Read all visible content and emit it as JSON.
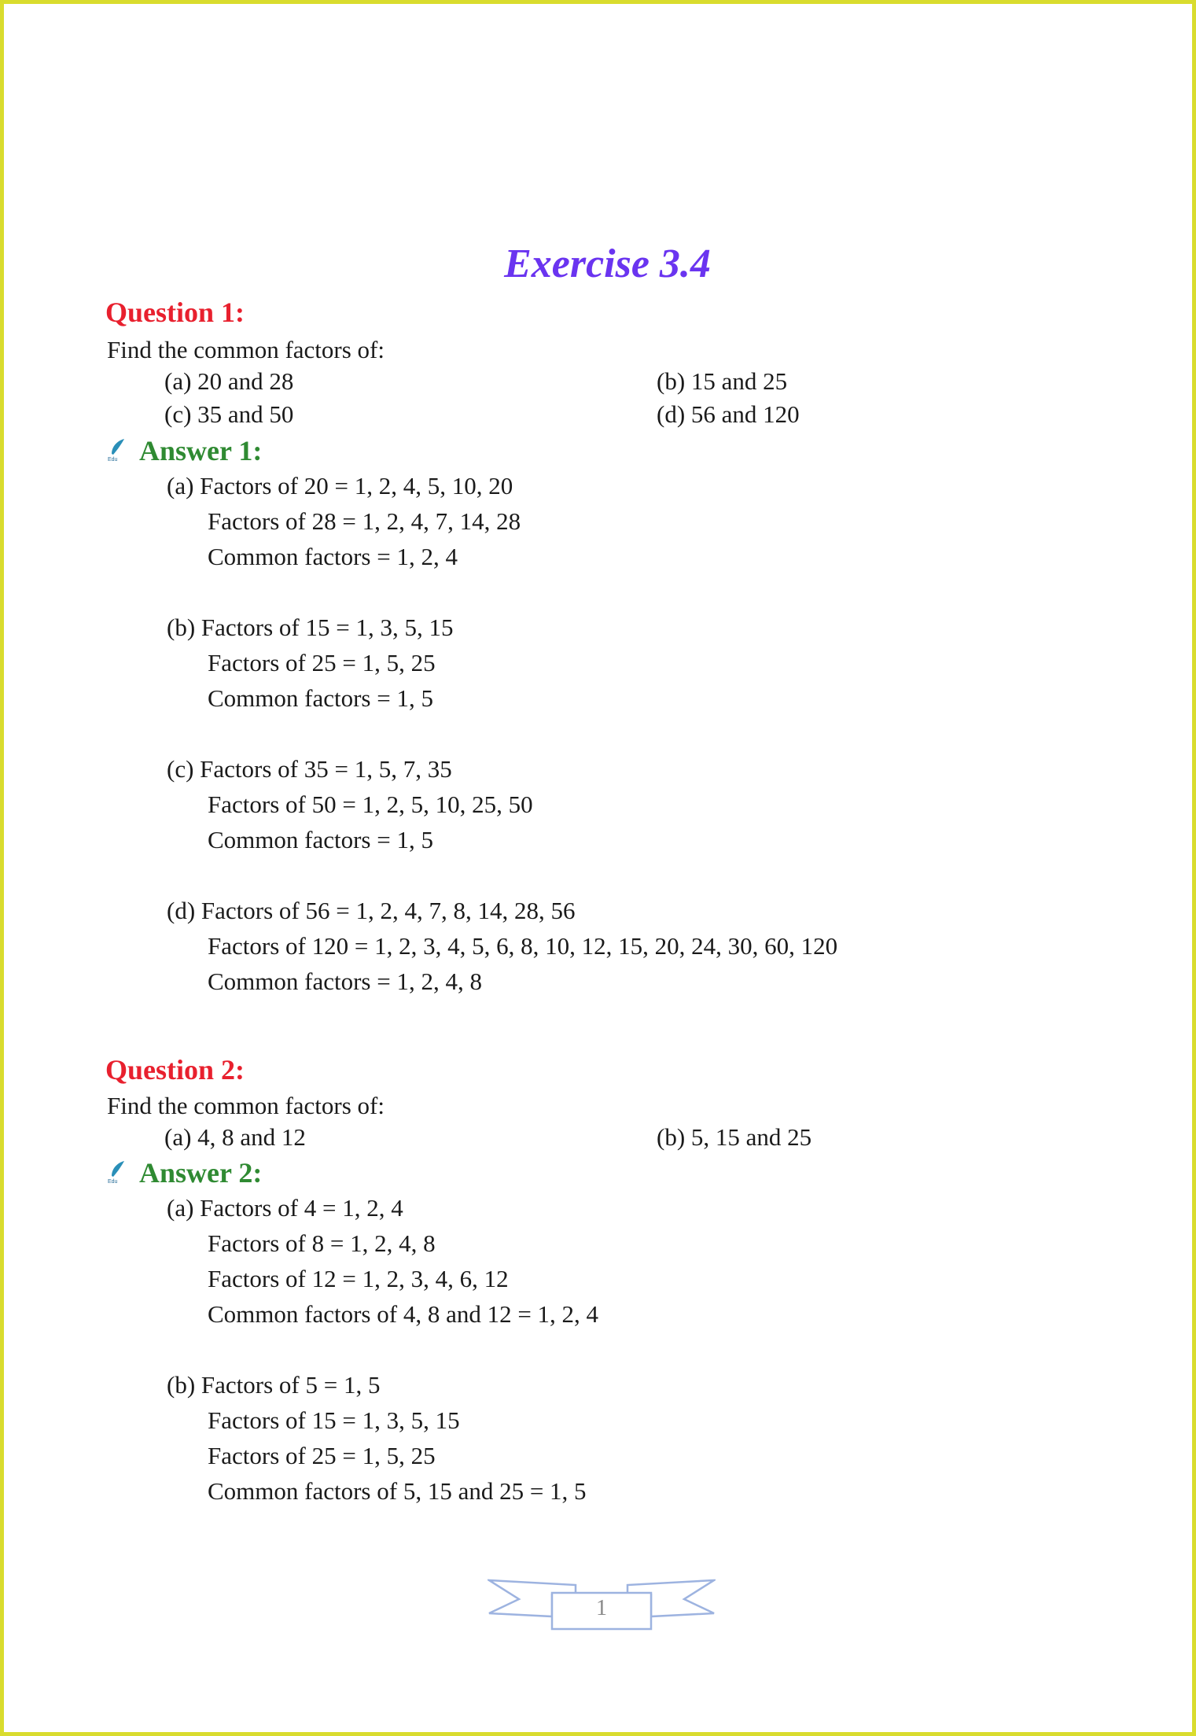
{
  "title": "Exercise 3.4",
  "q1": {
    "heading": "Question 1:",
    "prompt": "Find the common factors of:",
    "parts": [
      "(a) 20 and 28",
      "(b) 15 and 25",
      "(c) 35 and 50",
      "(d) 56 and 120"
    ]
  },
  "a1": {
    "heading": "Answer 1:",
    "lines": [
      "(a) Factors of 20 = 1, 2, 4, 5, 10, 20",
      "Factors of 28 = 1, 2, 4, 7, 14, 28",
      "Common factors = 1, 2, 4",
      "(b) Factors of 15 = 1, 3, 5, 15",
      "Factors of 25 = 1, 5, 25",
      "Common factors = 1, 5",
      "(c) Factors of 35 = 1, 5, 7, 35",
      "Factors of 50 = 1, 2, 5, 10, 25, 50",
      "Common factors = 1, 5",
      "(d) Factors of 56 = 1, 2, 4, 7, 8, 14, 28, 56",
      "Factors of 120 = 1, 2, 3, 4, 5, 6, 8, 10, 12, 15, 20, 24, 30, 60, 120",
      "Common factors = 1, 2, 4, 8"
    ]
  },
  "q2": {
    "heading": "Question 2:",
    "prompt": "Find the common factors of:",
    "parts": [
      "(a) 4, 8 and 12",
      "(b) 5, 15 and 25"
    ]
  },
  "a2": {
    "heading": "Answer 2:",
    "lines": [
      "(a) Factors of 4 = 1, 2, 4",
      "Factors of 8 = 1, 2, 4, 8",
      "Factors of 12 = 1, 2, 3, 4, 6, 12",
      "Common factors of 4, 8 and 12 = 1, 2, 4",
      "(b) Factors of 5 = 1, 5",
      "Factors of 15 = 1, 3, 5, 15",
      "Factors of 25 = 1, 5, 25",
      "Common factors of 5, 15 and 25 = 1, 5"
    ]
  },
  "footer": {
    "page_number": "1"
  },
  "colors": {
    "title": "#6a34f0",
    "question": "#e8202e",
    "answer": "#2f8a32",
    "border": "#d9dc2e"
  },
  "icons": {
    "answer": "quill-pen-icon",
    "footer": "ribbon-banner-icon"
  }
}
